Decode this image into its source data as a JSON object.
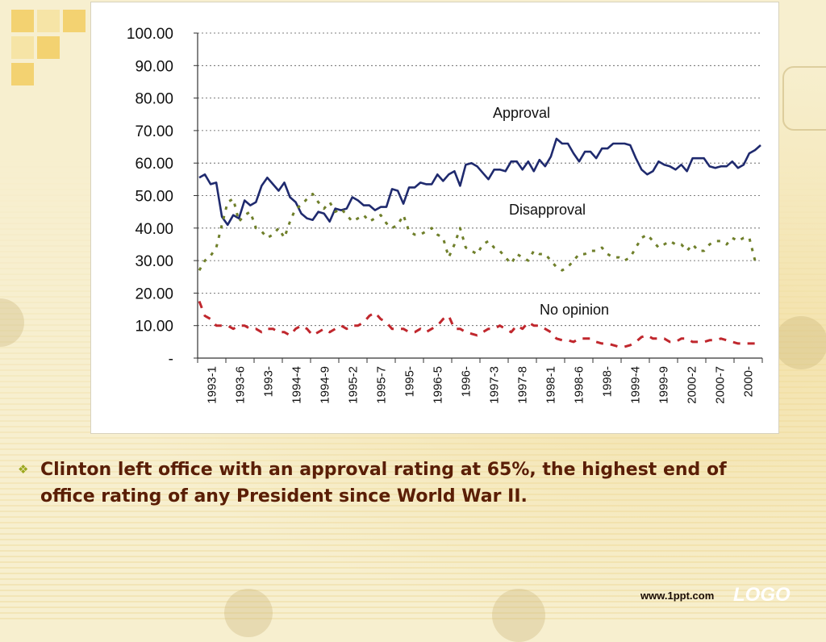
{
  "slide": {
    "bullet_text": "Clinton left office with an approval rating at 65%, the highest end of office rating of any President since World War II.",
    "footer_url": "www.1ppt.com",
    "logo_text": "LOGO",
    "bullet_icon": "diamond-bullet-icon",
    "colors": {
      "bullet_text": "#5a1e06",
      "bullet_icon": "#9aa71c",
      "accent_squares": "#f3d271"
    }
  },
  "chart_data": {
    "type": "line",
    "title": "",
    "xlabel": "",
    "ylabel": "",
    "ylim": [
      0,
      100
    ],
    "y_ticks": [
      "-",
      "10.00",
      "20.00",
      "30.00",
      "40.00",
      "50.00",
      "60.00",
      "70.00",
      "80.00",
      "90.00",
      "100.00"
    ],
    "x_tick_labels": [
      "1993-1",
      "1993-6",
      "1993-",
      "1994-4",
      "1994-9",
      "1995-2",
      "1995-7",
      "1995-",
      "1996-5",
      "1996-",
      "1997-3",
      "1997-8",
      "1998-1",
      "1998-6",
      "1998-",
      "1999-4",
      "1999-9",
      "2000-2",
      "2000-7",
      "2000-"
    ],
    "grid": "horizontal dotted",
    "annotations": [
      "Approval",
      "Disapproval",
      "No opinion"
    ],
    "series": [
      {
        "name": "Approval",
        "color": "#1f2a6e",
        "style": "solid",
        "values": [
          55.5,
          56.5,
          53.5,
          54,
          43.5,
          41,
          44,
          43,
          48.5,
          47,
          48,
          53,
          55.5,
          53.5,
          51.5,
          54,
          49.5,
          48,
          44.5,
          43,
          42.5,
          45,
          44.5,
          42,
          46,
          45.5,
          46,
          49.5,
          48.5,
          47,
          47,
          45.5,
          46.5,
          46.5,
          52,
          51.5,
          47.5,
          52.5,
          52.5,
          54,
          53.5,
          53.5,
          56.5,
          54.5,
          56.5,
          57.5,
          53,
          59.5,
          60,
          59,
          57,
          55,
          58,
          58,
          57.5,
          60.5,
          60.5,
          58,
          60.5,
          57.5,
          61,
          59,
          62,
          67.5,
          66,
          66,
          63,
          60.5,
          63.5,
          63.5,
          61.5,
          64.5,
          64.5,
          66,
          66,
          66,
          65.5,
          61.5,
          58,
          56.5,
          57.5,
          60.5,
          59.5,
          59,
          58,
          59.5,
          57.5,
          61.5,
          61.5,
          61.5,
          59,
          58.5,
          59,
          59,
          60.5,
          58.5,
          59.5,
          63,
          64,
          65.5
        ]
      },
      {
        "name": "Disapproval",
        "color": "#6f7f2a",
        "style": "dotted",
        "values": [
          27,
          30,
          31.5,
          34,
          41,
          48,
          49,
          42,
          44,
          45,
          40,
          39,
          37,
          38,
          40,
          37,
          42,
          46,
          47,
          49,
          50.5,
          48,
          46,
          48,
          45,
          46,
          44,
          42,
          43,
          44,
          42,
          43,
          44,
          41.5,
          40,
          41,
          44,
          39,
          38,
          38,
          39,
          40,
          38,
          37,
          31,
          35,
          40,
          34,
          33,
          32,
          35,
          36,
          34,
          33,
          31,
          29,
          32,
          31,
          30,
          33,
          32,
          32,
          30,
          28,
          27,
          28,
          30,
          32,
          32,
          33,
          33,
          34,
          32,
          31,
          31,
          30,
          31,
          34,
          37,
          38,
          36,
          34,
          35,
          36,
          35,
          35,
          33,
          35,
          33,
          33,
          35,
          36,
          36,
          35,
          37,
          36,
          37,
          37,
          30,
          30.5
        ]
      },
      {
        "name": "No opinion",
        "color": "#c0272d",
        "style": "dashed",
        "values": [
          17.5,
          13,
          12,
          10,
          10,
          10,
          9,
          10,
          10,
          9,
          9,
          8,
          9,
          9,
          8,
          8,
          7,
          9,
          10,
          9,
          7,
          8,
          9,
          8,
          9,
          10,
          9,
          10,
          10,
          11,
          13,
          14,
          12,
          11,
          9,
          9,
          9,
          8,
          8,
          9,
          8,
          9,
          10,
          12,
          13,
          9,
          9,
          8,
          7.5,
          7,
          8,
          9,
          9,
          10,
          9,
          8,
          10,
          9,
          11,
          10,
          10,
          9,
          8,
          6,
          5.5,
          5.5,
          5,
          6,
          6,
          6,
          5,
          4.5,
          4.5,
          4,
          3.5,
          3.5,
          4,
          5,
          6.5,
          7,
          6,
          6,
          6,
          5,
          5,
          6,
          6,
          5,
          5,
          5,
          5.5,
          5.5,
          6,
          5.5,
          5,
          4.5,
          4.5,
          4.5,
          4.5,
          4.5
        ]
      }
    ]
  }
}
